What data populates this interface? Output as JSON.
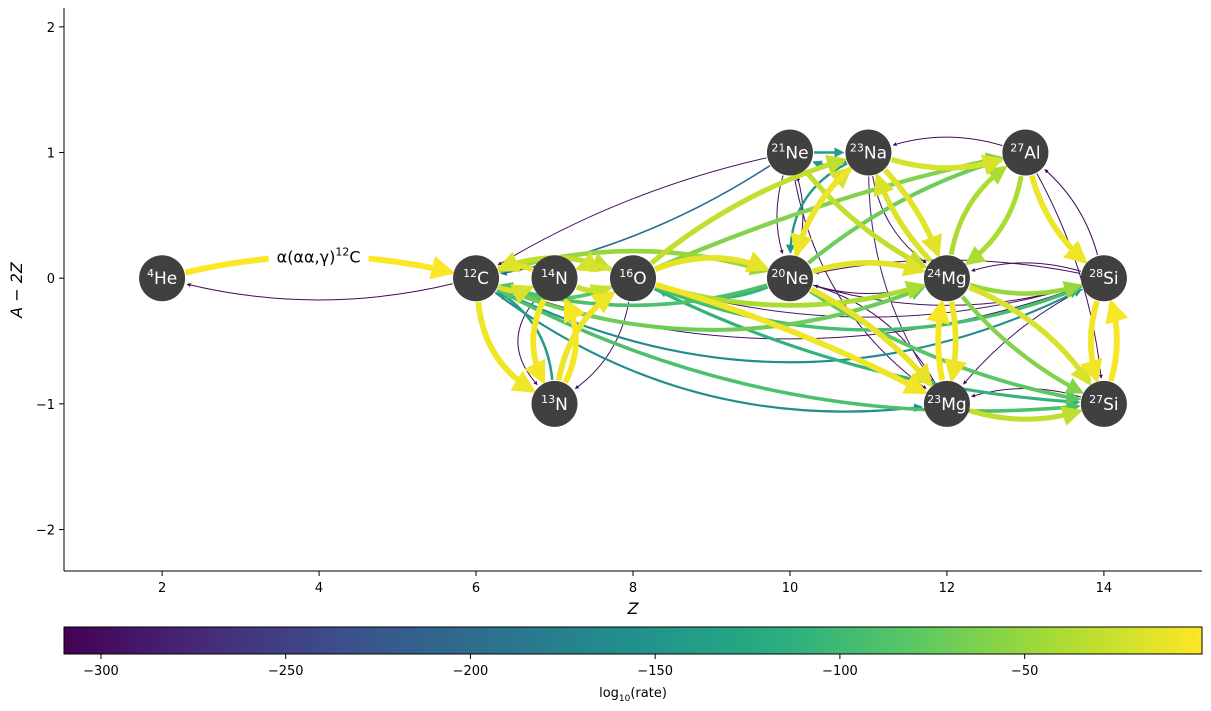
{
  "colors": {
    "node_fill": "#404040",
    "node_text": "#ffffff",
    "axis": "#000000",
    "colormap": [
      "#440154",
      "#472c7a",
      "#3b518b",
      "#2c718e",
      "#21908d",
      "#27ad81",
      "#5cc863",
      "#aadc32",
      "#fde725"
    ]
  },
  "axes": {
    "xlabel": "Z",
    "ylabel": "A − 2Z",
    "xlim": [
      0.75,
      15.25
    ],
    "ylim": [
      -2.33,
      2.15
    ],
    "xticks": [
      {
        "value": 2,
        "label": "2"
      },
      {
        "value": 4,
        "label": "4"
      },
      {
        "value": 6,
        "label": "6"
      },
      {
        "value": 8,
        "label": "8"
      },
      {
        "value": 10,
        "label": "10"
      },
      {
        "value": 12,
        "label": "12"
      },
      {
        "value": 14,
        "label": "14"
      }
    ],
    "yticks": [
      {
        "value": 2,
        "label": "2"
      },
      {
        "value": 1,
        "label": "1"
      },
      {
        "value": 0,
        "label": "0"
      },
      {
        "value": -1,
        "label": "−1"
      },
      {
        "value": -2,
        "label": "−2"
      }
    ]
  },
  "colorbar": {
    "label": "log",
    "label_sub": "10",
    "label_rest": "(rate)",
    "range": [
      -310,
      -2
    ],
    "ticks": [
      {
        "value": -300,
        "label": "−300"
      },
      {
        "value": -250,
        "label": "−250"
      },
      {
        "value": -200,
        "label": "−200"
      },
      {
        "value": -150,
        "label": "−150"
      },
      {
        "value": -100,
        "label": "−100"
      },
      {
        "value": -50,
        "label": "−50"
      }
    ]
  },
  "nodes": [
    {
      "id": "he4",
      "mass": "4",
      "symbol": "He",
      "z": 2,
      "n_minus_z": 0
    },
    {
      "id": "c12",
      "mass": "12",
      "symbol": "C",
      "z": 6,
      "n_minus_z": 0
    },
    {
      "id": "n14",
      "mass": "14",
      "symbol": "N",
      "z": 7,
      "n_minus_z": 0
    },
    {
      "id": "o16",
      "mass": "16",
      "symbol": "O",
      "z": 8,
      "n_minus_z": 0
    },
    {
      "id": "ne20",
      "mass": "20",
      "symbol": "Ne",
      "z": 10,
      "n_minus_z": 0
    },
    {
      "id": "mg24",
      "mass": "24",
      "symbol": "Mg",
      "z": 12,
      "n_minus_z": 0
    },
    {
      "id": "si28",
      "mass": "28",
      "symbol": "Si",
      "z": 14,
      "n_minus_z": 0
    },
    {
      "id": "ne21",
      "mass": "21",
      "symbol": "Ne",
      "z": 10,
      "n_minus_z": 1
    },
    {
      "id": "na23",
      "mass": "23",
      "symbol": "Na",
      "z": 11,
      "n_minus_z": 1
    },
    {
      "id": "al27",
      "mass": "27",
      "symbol": "Al",
      "z": 13,
      "n_minus_z": 1
    },
    {
      "id": "n13",
      "mass": "13",
      "symbol": "N",
      "z": 7,
      "n_minus_z": -1
    },
    {
      "id": "mg23",
      "mass": "23",
      "symbol": "Mg",
      "z": 12,
      "n_minus_z": -1
    },
    {
      "id": "si27",
      "mass": "27",
      "symbol": "Si",
      "z": 14,
      "n_minus_z": -1
    }
  ],
  "edges": [
    {
      "from": "he4",
      "to": "c12",
      "rate": -3,
      "curve": -0.12,
      "label": "α(αα,γ)",
      "label_mass": "12",
      "label_sym": "C"
    },
    {
      "from": "c12",
      "to": "he4",
      "rate": -305,
      "curve": -0.12
    },
    {
      "from": "c12",
      "to": "n13",
      "rate": -8,
      "curve": 0.25
    },
    {
      "from": "n13",
      "to": "c12",
      "rate": -140,
      "curve": 0.25
    },
    {
      "from": "n13",
      "to": "n14",
      "rate": -5,
      "curve": 0.25
    },
    {
      "from": "n14",
      "to": "n13",
      "rate": -7,
      "curve": 0.25
    },
    {
      "from": "n13",
      "to": "o16",
      "rate": -10,
      "curve": -0.2
    },
    {
      "from": "o16",
      "to": "n13",
      "rate": -300,
      "curve": -0.2
    },
    {
      "from": "n14",
      "to": "n13",
      "rate": -300,
      "curve": 0.45
    },
    {
      "from": "c12",
      "to": "n14",
      "rate": -20,
      "curve": 0.2
    },
    {
      "from": "n14",
      "to": "c12",
      "rate": -15,
      "curve": 0.2
    },
    {
      "from": "c12",
      "to": "o16",
      "rate": -30,
      "curve": -0.2
    },
    {
      "from": "o16",
      "to": "c12",
      "rate": -80,
      "curve": -0.2
    },
    {
      "from": "c12",
      "to": "ne20",
      "rate": -50,
      "curve": -0.15
    },
    {
      "from": "ne20",
      "to": "c12",
      "rate": -90,
      "curve": -0.15
    },
    {
      "from": "c12",
      "to": "mg24",
      "rate": -70,
      "curve": 0.2
    },
    {
      "from": "mg24",
      "to": "c12",
      "rate": -300,
      "curve": -0.2
    },
    {
      "from": "c12",
      "to": "si28",
      "rate": -160,
      "curve": 0.25
    },
    {
      "from": "si28",
      "to": "c12",
      "rate": -300,
      "curve": -0.18
    },
    {
      "from": "ne21",
      "to": "c12",
      "rate": -200,
      "curve": -0.1
    },
    {
      "from": "ne21",
      "to": "c12",
      "rate": -300,
      "curve": 0.08
    },
    {
      "from": "c12",
      "to": "mg23",
      "rate": -160,
      "curve": 0.2
    },
    {
      "from": "c12",
      "to": "si27",
      "rate": -90,
      "curve": 0.15
    },
    {
      "from": "n14",
      "to": "o16",
      "rate": -25,
      "curve": 0.2
    },
    {
      "from": "o16",
      "to": "n14",
      "rate": -20,
      "curve": 0.2
    },
    {
      "from": "o16",
      "to": "ne20",
      "rate": -12,
      "curve": -0.2
    },
    {
      "from": "ne20",
      "to": "o16",
      "rate": -110,
      "curve": -0.2
    },
    {
      "from": "o16",
      "to": "mg24",
      "rate": -40,
      "curve": 0.15
    },
    {
      "from": "mg24",
      "to": "o16",
      "rate": -300,
      "curve": -0.15
    },
    {
      "from": "o16",
      "to": "na23",
      "rate": -30,
      "curve": -0.1
    },
    {
      "from": "o16",
      "to": "al27",
      "rate": -60,
      "curve": -0.05
    },
    {
      "from": "o16",
      "to": "mg23",
      "rate": -8,
      "curve": -0.05
    },
    {
      "from": "o16",
      "to": "si27",
      "rate": -110,
      "curve": 0.1
    },
    {
      "from": "o16",
      "to": "si28",
      "rate": -95,
      "curve": 0.2
    },
    {
      "from": "si28",
      "to": "o16",
      "rate": -290,
      "curve": -0.15
    },
    {
      "from": "ne20",
      "to": "ne21",
      "rate": -300,
      "curve": 0.15
    },
    {
      "from": "ne21",
      "to": "ne20",
      "rate": -300,
      "curve": 0.15
    },
    {
      "from": "ne20",
      "to": "na23",
      "rate": -20,
      "curve": -0.15
    },
    {
      "from": "na23",
      "to": "ne20",
      "rate": -10,
      "curve": 0.15
    },
    {
      "from": "na23",
      "to": "ne20",
      "rate": -150,
      "curve": 0.3
    },
    {
      "from": "ne20",
      "to": "mg24",
      "rate": -15,
      "curve": -0.15
    },
    {
      "from": "mg24",
      "to": "ne20",
      "rate": -300,
      "curve": -0.15
    },
    {
      "from": "ne20",
      "to": "al27",
      "rate": -70,
      "curve": -0.1
    },
    {
      "from": "ne20",
      "to": "mg23",
      "rate": -12,
      "curve": -0.1
    },
    {
      "from": "mg23",
      "to": "ne20",
      "rate": -300,
      "curve": 0.2
    },
    {
      "from": "ne20",
      "to": "si28",
      "rate": -300,
      "curve": 0.15
    },
    {
      "from": "si28",
      "to": "ne20",
      "rate": -300,
      "curve": 0.1
    },
    {
      "from": "ne20",
      "to": "si27",
      "rate": -80,
      "curve": 0.1
    },
    {
      "from": "ne21",
      "to": "na23",
      "rate": -140,
      "curve": 0.0
    },
    {
      "from": "na23",
      "to": "ne21",
      "rate": -150,
      "curve": -0.2
    },
    {
      "from": "ne21",
      "to": "mg24",
      "rate": -30,
      "curve": 0.1
    },
    {
      "from": "ne21",
      "to": "mg23",
      "rate": -300,
      "curve": 0.2
    },
    {
      "from": "na23",
      "to": "mg24",
      "rate": -15,
      "curve": -0.1
    },
    {
      "from": "mg24",
      "to": "na23",
      "rate": -18,
      "curve": -0.1
    },
    {
      "from": "na23",
      "to": "mg24",
      "rate": -300,
      "curve": 0.2
    },
    {
      "from": "na23",
      "to": "al27",
      "rate": -20,
      "curve": 0.15
    },
    {
      "from": "al27",
      "to": "na23",
      "rate": -300,
      "curve": 0.15
    },
    {
      "from": "na23",
      "to": "mg23",
      "rate": -280,
      "curve": 0.15
    },
    {
      "from": "mg24",
      "to": "al27",
      "rate": -40,
      "curve": -0.2
    },
    {
      "from": "al27",
      "to": "mg24",
      "rate": -40,
      "curve": -0.2
    },
    {
      "from": "mg24",
      "to": "si28",
      "rate": -50,
      "curve": 0.15
    },
    {
      "from": "si28",
      "to": "mg24",
      "rate": -300,
      "curve": 0.15
    },
    {
      "from": "mg24",
      "to": "mg23",
      "rate": -10,
      "curve": -0.1
    },
    {
      "from": "mg23",
      "to": "mg24",
      "rate": -5,
      "curve": -0.1
    },
    {
      "from": "mg24",
      "to": "si27",
      "rate": -60,
      "curve": 0.1
    },
    {
      "from": "si27",
      "to": "mg24",
      "rate": -300,
      "curve": 0.15
    },
    {
      "from": "mg24",
      "to": "si27",
      "rate": -20,
      "curve": -0.15
    },
    {
      "from": "al27",
      "to": "si28",
      "rate": -10,
      "curve": 0.15
    },
    {
      "from": "si28",
      "to": "al27",
      "rate": -300,
      "curve": 0.15
    },
    {
      "from": "al27",
      "to": "si27",
      "rate": -300,
      "curve": -0.1
    },
    {
      "from": "mg23",
      "to": "si27",
      "rate": -30,
      "curve": 0.15
    },
    {
      "from": "si27",
      "to": "mg23",
      "rate": -300,
      "curve": 0.15
    },
    {
      "from": "si28",
      "to": "si27",
      "rate": -8,
      "curve": 0.15
    },
    {
      "from": "si27",
      "to": "si28",
      "rate": -5,
      "curve": 0.15
    },
    {
      "from": "si28",
      "to": "mg23",
      "rate": -300,
      "curve": 0.1
    }
  ]
}
